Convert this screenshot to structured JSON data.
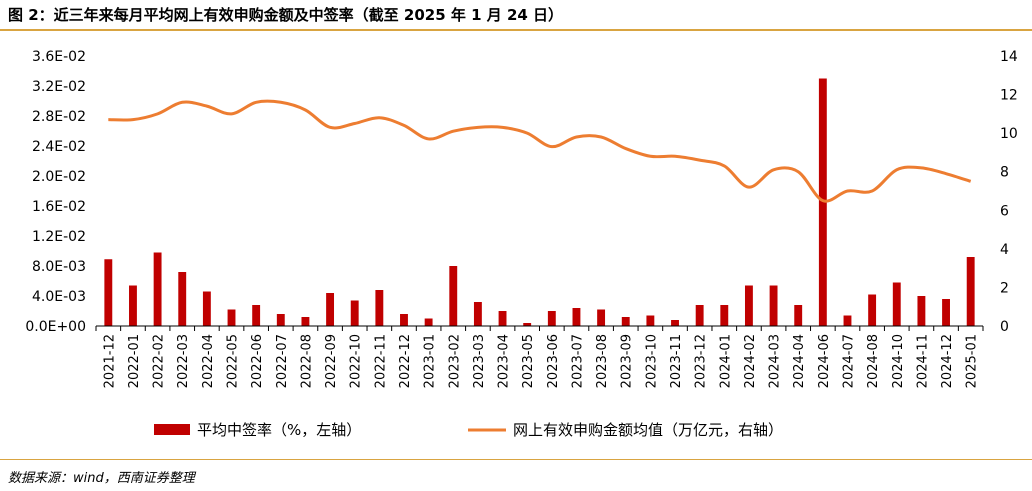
{
  "figure": {
    "title": "图 2：近三年来每月平均网上有效申购金额及中签率（截至 2025 年 1 月 24 日）",
    "source": "数据来源：wind，西南证券整理"
  },
  "chart_data": {
    "type": "bar+line",
    "categories": [
      "2021-12",
      "2022-01",
      "2022-02",
      "2022-03",
      "2022-04",
      "2022-05",
      "2022-06",
      "2022-07",
      "2022-08",
      "2022-09",
      "2022-10",
      "2022-11",
      "2022-12",
      "2023-01",
      "2023-02",
      "2023-03",
      "2023-04",
      "2023-05",
      "2023-06",
      "2023-07",
      "2023-08",
      "2023-09",
      "2023-10",
      "2023-11",
      "2023-12",
      "2024-01",
      "2024-02",
      "2024-03",
      "2024-04",
      "2024-06",
      "2024-07",
      "2024-08",
      "2024-10",
      "2024-11",
      "2024-12",
      "2025-01"
    ],
    "y_left": {
      "min": 0,
      "max": 0.036,
      "ticks": [
        "0.0E+00",
        "4.0E-03",
        "8.0E-03",
        "1.2E-02",
        "1.6E-02",
        "2.0E-02",
        "2.4E-02",
        "2.8E-02",
        "3.2E-02",
        "3.6E-02"
      ]
    },
    "y_right": {
      "min": 0,
      "max": 14,
      "ticks": [
        "0",
        "2",
        "4",
        "6",
        "8",
        "10",
        "12",
        "14"
      ]
    },
    "grid": false,
    "legend_position": "bottom",
    "series": [
      {
        "name": "平均中签率（%，左轴）",
        "type": "bar",
        "axis": "left",
        "color": "#c00000",
        "values": [
          0.0089,
          0.0054,
          0.0098,
          0.0072,
          0.0046,
          0.0022,
          0.0028,
          0.0016,
          0.0012,
          0.0044,
          0.0034,
          0.0048,
          0.0016,
          0.001,
          0.008,
          0.0032,
          0.002,
          0.0004,
          0.002,
          0.0024,
          0.0022,
          0.0012,
          0.0014,
          0.0008,
          0.0028,
          0.0028,
          0.0054,
          0.0054,
          0.0028,
          0.033,
          0.0014,
          0.0042,
          0.0058,
          0.004,
          0.0036,
          0.0092
        ]
      },
      {
        "name": "网上有效申购金额均值（万亿元，右轴）",
        "type": "line",
        "axis": "right",
        "color": "#ed7d31",
        "values": [
          10.7,
          10.7,
          11.0,
          11.6,
          11.4,
          11.0,
          11.6,
          11.6,
          11.2,
          10.3,
          10.5,
          10.8,
          10.4,
          9.7,
          10.1,
          10.3,
          10.3,
          10.0,
          9.3,
          9.8,
          9.8,
          9.2,
          8.8,
          8.8,
          8.6,
          8.3,
          7.2,
          8.1,
          8.0,
          6.5,
          7.0,
          7.0,
          8.1,
          8.2,
          7.9,
          7.5
        ]
      }
    ]
  }
}
